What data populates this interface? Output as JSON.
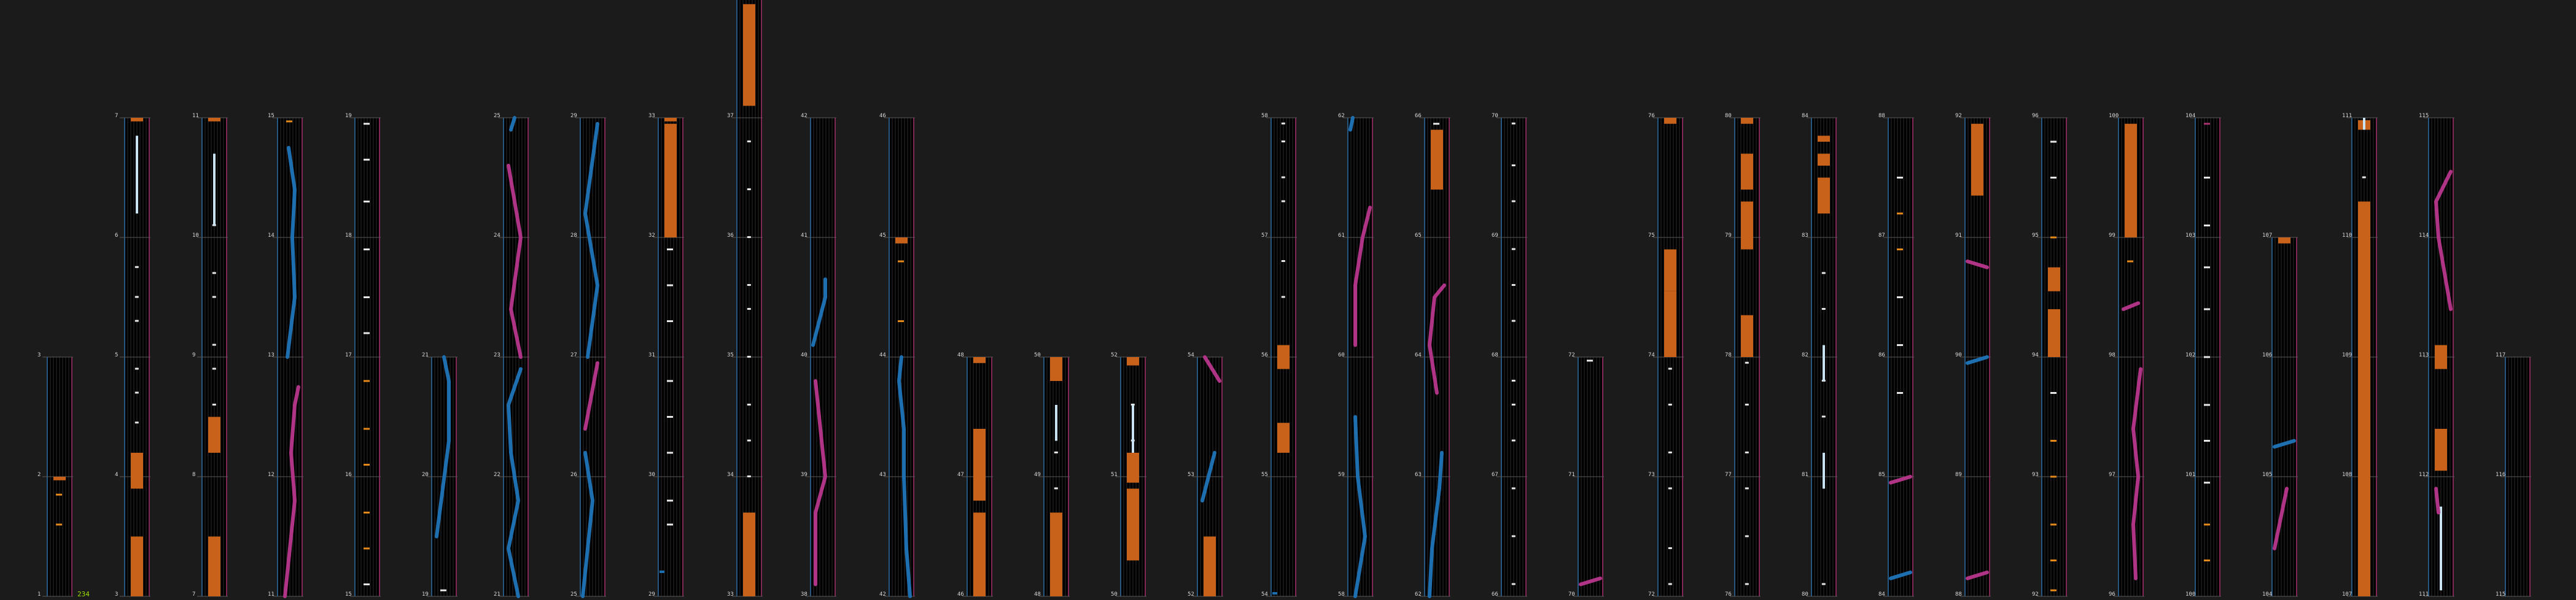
{
  "chart": {
    "combo": "234",
    "colors": {
      "background": "#1b1b1b",
      "column_bg": "#000000",
      "lane_line": "#2c2c2c",
      "measure_line": "#5a5a5a",
      "left_edge": "#2c6fa8",
      "right_edge": "#a8306e",
      "tap_note": "#e8e8e8",
      "hold_body": "#c8621a",
      "hold_head": "#e07a22",
      "flick_note": "#e8e8e8",
      "slide_blue": "#1e6fb0",
      "slide_pink": "#b03486",
      "orange_tick": "#e58a1a"
    },
    "columns": [
      {
        "start": 1,
        "measures": [
          "1",
          "2",
          "3"
        ]
      },
      {
        "start": 3,
        "measures": [
          "3",
          "4",
          "5",
          "6",
          "7"
        ]
      },
      {
        "start": 7,
        "measures": [
          "7",
          "8",
          "9",
          "10",
          "11"
        ]
      },
      {
        "start": 11,
        "measures": [
          "11",
          "12",
          "13",
          "14",
          "15"
        ]
      },
      {
        "start": 15,
        "measures": [
          "15",
          "16",
          "17",
          "18",
          "19"
        ]
      },
      {
        "start": 19,
        "measures": [
          "19",
          "20",
          "21"
        ]
      },
      {
        "start": 21,
        "measures": [
          "21",
          "22",
          "23",
          "24",
          "25"
        ]
      },
      {
        "start": 25,
        "measures": [
          "25",
          "26",
          "27",
          "28",
          "29"
        ]
      },
      {
        "start": 29,
        "measures": [
          "29",
          "30",
          "31",
          "32",
          "33"
        ]
      },
      {
        "start": 33,
        "measures": [
          "33",
          "34",
          "35",
          "36",
          "37",
          "38"
        ]
      },
      {
        "start": 38,
        "measures": [
          "38",
          "39",
          "40",
          "41",
          "42"
        ]
      },
      {
        "start": 42,
        "measures": [
          "42",
          "43",
          "44",
          "45",
          "46"
        ]
      },
      {
        "start": 46,
        "measures": [
          "46",
          "47",
          "48"
        ]
      },
      {
        "start": 48,
        "measures": [
          "48",
          "49",
          "50"
        ]
      },
      {
        "start": 50,
        "measures": [
          "50",
          "51",
          "52"
        ]
      },
      {
        "start": 52,
        "measures": [
          "52",
          "53",
          "54"
        ]
      },
      {
        "start": 54,
        "measures": [
          "54",
          "55",
          "56",
          "57",
          "58"
        ]
      },
      {
        "start": 58,
        "measures": [
          "58",
          "59",
          "60",
          "61",
          "62"
        ]
      },
      {
        "start": 62,
        "measures": [
          "62",
          "63",
          "64",
          "65",
          "66"
        ]
      },
      {
        "start": 66,
        "measures": [
          "66",
          "67",
          "68",
          "69",
          "70"
        ]
      },
      {
        "start": 70,
        "measures": [
          "70",
          "71",
          "72"
        ]
      },
      {
        "start": 72,
        "measures": [
          "72",
          "73",
          "74",
          "75",
          "76"
        ]
      },
      {
        "start": 76,
        "measures": [
          "76",
          "77",
          "78",
          "79",
          "80"
        ]
      },
      {
        "start": 80,
        "measures": [
          "80",
          "81",
          "82",
          "83",
          "84"
        ]
      },
      {
        "start": 84,
        "measures": [
          "84",
          "85",
          "86",
          "87",
          "88"
        ]
      },
      {
        "start": 88,
        "measures": [
          "88",
          "89",
          "90",
          "91",
          "92"
        ]
      },
      {
        "start": 92,
        "measures": [
          "92",
          "93",
          "94",
          "95",
          "96"
        ]
      },
      {
        "start": 96,
        "measures": [
          "96",
          "97",
          "98",
          "99",
          "100"
        ]
      },
      {
        "start": 100,
        "measures": [
          "100",
          "101",
          "102",
          "103",
          "104"
        ]
      },
      {
        "start": 104,
        "measures": [
          "104",
          "105",
          "106",
          "107"
        ]
      },
      {
        "start": 107,
        "measures": [
          "107",
          "108",
          "109",
          "110",
          "111"
        ]
      },
      {
        "start": 111,
        "measures": [
          "111",
          "112",
          "113",
          "114",
          "115"
        ]
      },
      {
        "start": 115,
        "measures": [
          "115",
          "116",
          "117"
        ]
      }
    ]
  }
}
